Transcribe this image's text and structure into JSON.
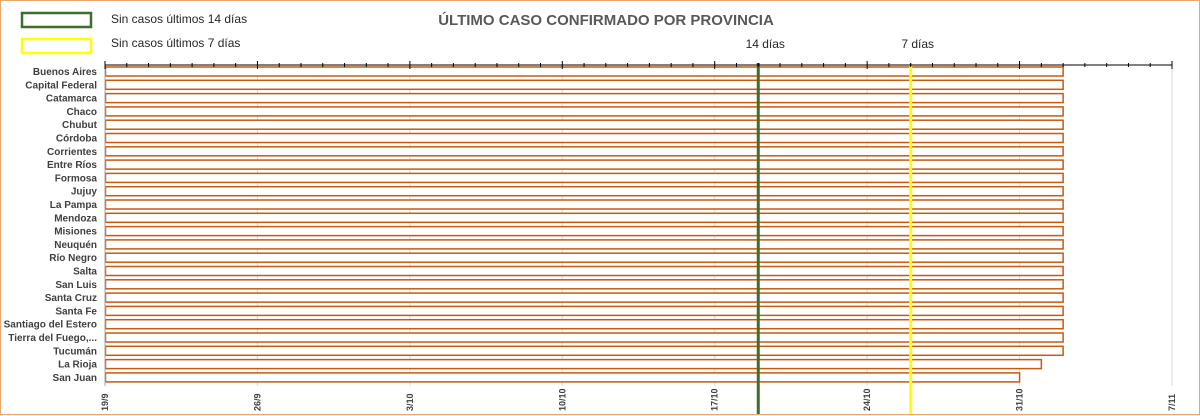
{
  "chart_data": {
    "type": "bar",
    "title": "ÚLTIMO CASO CONFIRMADO POR PROVINCIA",
    "legend": [
      {
        "label": "Sin casos últimos 14 días",
        "color": "#3f6e2a"
      },
      {
        "label": "Sin casos últimos 7 días",
        "color": "#ffff00"
      }
    ],
    "reference_lines": [
      {
        "label": "14 días",
        "x": "2020-10-19",
        "color": "#3f6e2a"
      },
      {
        "label": "7 días",
        "x": "2020-10-26",
        "color": "#ffff00"
      }
    ],
    "x_axis": {
      "start": "2020-09-19",
      "end": "2020-11-07",
      "tick_labels": [
        {
          "label": "19/9",
          "date": "2020-09-19"
        },
        {
          "label": "26/9",
          "date": "2020-09-26"
        },
        {
          "label": "3/10",
          "date": "2020-10-03"
        },
        {
          "label": "10/10",
          "date": "2020-10-10"
        },
        {
          "label": "17/10",
          "date": "2020-10-17"
        },
        {
          "label": "24/10",
          "date": "2020-10-24"
        },
        {
          "label": "31/10",
          "date": "2020-10-31"
        },
        {
          "label": "7/11",
          "date": "2020-11-07"
        }
      ],
      "grid": true
    },
    "bar_color": "#c55a11",
    "categories": [
      "Buenos Aires",
      "Capital Federal",
      "Catamarca",
      "Chaco",
      "Chubut",
      "Córdoba",
      "Corrientes",
      "Entre Ríos",
      "Formosa",
      "Jujuy",
      "La Pampa",
      "Mendoza",
      "Misiones",
      "Neuquén",
      "Río Negro",
      "Salta",
      "San Luis",
      "Santa Cruz",
      "Santa Fe",
      "Santiago del Estero",
      "Tierra del Fuego,...",
      "Tucumán",
      "La Rioja",
      "San Juan"
    ],
    "values": [
      "2020-11-02",
      "2020-11-02",
      "2020-11-02",
      "2020-11-02",
      "2020-11-02",
      "2020-11-02",
      "2020-11-02",
      "2020-11-02",
      "2020-11-02",
      "2020-11-02",
      "2020-11-02",
      "2020-11-02",
      "2020-11-02",
      "2020-11-02",
      "2020-11-02",
      "2020-11-02",
      "2020-11-02",
      "2020-11-02",
      "2020-11-02",
      "2020-11-02",
      "2020-11-02",
      "2020-11-02",
      "2020-11-01",
      "2020-10-31"
    ]
  }
}
